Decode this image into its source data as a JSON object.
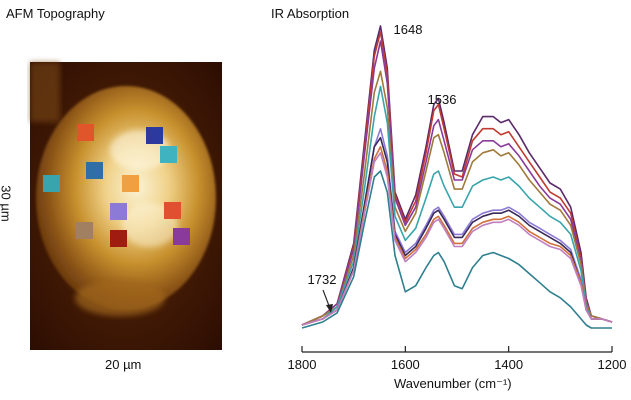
{
  "left_panel": {
    "title": "AFM Topography",
    "x_scale_label": "20 µm",
    "y_scale_label": "30 µm",
    "markers": [
      {
        "color": "#e0552a"
      },
      {
        "color": "#2c3aa0"
      },
      {
        "color": "#3fb3bf"
      },
      {
        "color": "#2f6fa8"
      },
      {
        "color": "#38a5ad"
      },
      {
        "color": "#f0a040"
      },
      {
        "color": "#8c7ad6"
      },
      {
        "color": "#e05030"
      },
      {
        "color": "#a08060"
      },
      {
        "color": "#a01c10"
      },
      {
        "color": "#8a3a9a"
      }
    ]
  },
  "chart_data": {
    "type": "line",
    "title": "IR Absorption",
    "xlabel": "Wavenumber (cm⁻¹)",
    "xlim": [
      1800,
      1200
    ],
    "x_ticks": [
      "1800",
      "1600",
      "1400",
      "1200"
    ],
    "y_ticks_shown": false,
    "annotations": [
      {
        "text": "1648",
        "x": 1648
      },
      {
        "text": "1536",
        "x": 1536
      },
      {
        "text": "1732",
        "x": 1732,
        "arrow": true
      }
    ],
    "x": [
      1800,
      1760,
      1732,
      1700,
      1680,
      1660,
      1648,
      1635,
      1620,
      1600,
      1580,
      1560,
      1545,
      1536,
      1525,
      1505,
      1490,
      1470,
      1450,
      1430,
      1415,
      1400,
      1380,
      1360,
      1340,
      1320,
      1300,
      1280,
      1260,
      1250,
      1240,
      1220,
      1200
    ],
    "series": [
      {
        "color": "#5a2a6a",
        "values": [
          0.01,
          0.04,
          0.08,
          0.28,
          0.6,
          0.92,
          1.0,
          0.86,
          0.45,
          0.36,
          0.44,
          0.6,
          0.74,
          0.76,
          0.68,
          0.52,
          0.52,
          0.64,
          0.7,
          0.7,
          0.68,
          0.69,
          0.64,
          0.58,
          0.53,
          0.48,
          0.46,
          0.4,
          0.25,
          0.1,
          0.04,
          0.03,
          0.02
        ]
      },
      {
        "color": "#c03a30",
        "values": [
          0.01,
          0.04,
          0.08,
          0.27,
          0.58,
          0.9,
          0.98,
          0.84,
          0.44,
          0.35,
          0.42,
          0.58,
          0.72,
          0.74,
          0.66,
          0.51,
          0.5,
          0.62,
          0.66,
          0.66,
          0.64,
          0.65,
          0.6,
          0.55,
          0.5,
          0.45,
          0.43,
          0.38,
          0.23,
          0.09,
          0.04,
          0.03,
          0.02
        ]
      },
      {
        "color": "#8a3a9a",
        "values": [
          0.01,
          0.04,
          0.08,
          0.26,
          0.56,
          0.86,
          0.95,
          0.81,
          0.43,
          0.34,
          0.4,
          0.55,
          0.67,
          0.69,
          0.62,
          0.49,
          0.49,
          0.59,
          0.62,
          0.62,
          0.6,
          0.61,
          0.57,
          0.52,
          0.47,
          0.43,
          0.41,
          0.36,
          0.22,
          0.09,
          0.04,
          0.03,
          0.02
        ]
      },
      {
        "color": "#a07a3a",
        "values": [
          0.01,
          0.04,
          0.07,
          0.24,
          0.5,
          0.78,
          0.85,
          0.73,
          0.4,
          0.32,
          0.38,
          0.52,
          0.63,
          0.64,
          0.58,
          0.46,
          0.46,
          0.55,
          0.58,
          0.59,
          0.57,
          0.58,
          0.54,
          0.49,
          0.45,
          0.41,
          0.39,
          0.34,
          0.21,
          0.08,
          0.04,
          0.03,
          0.02
        ]
      },
      {
        "color": "#38a5ad",
        "values": [
          0.01,
          0.03,
          0.07,
          0.22,
          0.45,
          0.7,
          0.8,
          0.68,
          0.37,
          0.29,
          0.33,
          0.43,
          0.51,
          0.52,
          0.47,
          0.4,
          0.4,
          0.47,
          0.49,
          0.5,
          0.49,
          0.5,
          0.47,
          0.43,
          0.4,
          0.37,
          0.35,
          0.31,
          0.19,
          0.07,
          0.03,
          0.03,
          0.02
        ]
      },
      {
        "color": "#8c7ad6",
        "values": [
          0.01,
          0.03,
          0.06,
          0.2,
          0.4,
          0.6,
          0.66,
          0.57,
          0.32,
          0.25,
          0.28,
          0.34,
          0.39,
          0.4,
          0.37,
          0.31,
          0.31,
          0.36,
          0.38,
          0.39,
          0.39,
          0.4,
          0.38,
          0.35,
          0.33,
          0.31,
          0.29,
          0.26,
          0.16,
          0.06,
          0.03,
          0.03,
          0.02
        ]
      },
      {
        "color": "#3a2a5a",
        "values": [
          0.01,
          0.03,
          0.06,
          0.2,
          0.4,
          0.6,
          0.63,
          0.55,
          0.31,
          0.24,
          0.27,
          0.33,
          0.38,
          0.39,
          0.36,
          0.3,
          0.3,
          0.35,
          0.37,
          0.38,
          0.38,
          0.39,
          0.37,
          0.34,
          0.32,
          0.3,
          0.28,
          0.25,
          0.15,
          0.06,
          0.03,
          0.03,
          0.02
        ]
      },
      {
        "color": "#d0703a",
        "values": [
          0.01,
          0.03,
          0.06,
          0.19,
          0.38,
          0.56,
          0.6,
          0.52,
          0.3,
          0.23,
          0.26,
          0.31,
          0.36,
          0.37,
          0.34,
          0.28,
          0.28,
          0.33,
          0.35,
          0.36,
          0.36,
          0.37,
          0.35,
          0.32,
          0.3,
          0.28,
          0.27,
          0.24,
          0.15,
          0.06,
          0.03,
          0.03,
          0.02
        ]
      },
      {
        "color": "#c080c0",
        "values": [
          0.01,
          0.03,
          0.06,
          0.19,
          0.37,
          0.55,
          0.58,
          0.5,
          0.29,
          0.22,
          0.25,
          0.3,
          0.35,
          0.36,
          0.33,
          0.27,
          0.27,
          0.32,
          0.34,
          0.35,
          0.35,
          0.36,
          0.34,
          0.31,
          0.29,
          0.27,
          0.26,
          0.23,
          0.14,
          0.06,
          0.03,
          0.03,
          0.02
        ]
      },
      {
        "color": "#2f7f8f",
        "values": [
          0.0,
          0.02,
          0.05,
          0.17,
          0.34,
          0.5,
          0.52,
          0.45,
          0.24,
          0.12,
          0.14,
          0.2,
          0.24,
          0.25,
          0.22,
          0.14,
          0.13,
          0.2,
          0.24,
          0.25,
          0.24,
          0.23,
          0.21,
          0.18,
          0.15,
          0.12,
          0.1,
          0.07,
          0.03,
          0.01,
          0.0,
          0.0,
          0.0
        ]
      }
    ]
  }
}
